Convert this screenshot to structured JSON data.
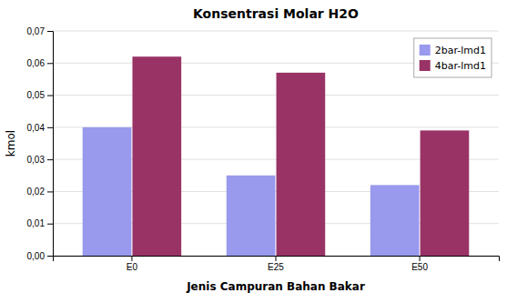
{
  "chart_data": {
    "type": "bar",
    "title": "Konsentrasi Molar H2O",
    "categories": [
      "E0",
      "E25",
      "E50"
    ],
    "series": [
      {
        "name": "2bar-lmd1",
        "color": "#9999EE",
        "values": [
          0.04,
          0.025,
          0.022
        ]
      },
      {
        "name": "4bar-lmd1",
        "color": "#993366",
        "values": [
          0.062,
          0.057,
          0.039
        ]
      }
    ],
    "xlabel": "Jenis Campuran Bahan Bakar",
    "ylabel": "kmol",
    "ylim": [
      0.0,
      0.07
    ],
    "yticks": [
      {
        "value": 0.0,
        "label": "0,00"
      },
      {
        "value": 0.01,
        "label": "0,01"
      },
      {
        "value": 0.02,
        "label": "0,02"
      },
      {
        "value": 0.03,
        "label": "0,03"
      },
      {
        "value": 0.04,
        "label": "0,04"
      },
      {
        "value": 0.05,
        "label": "0,05"
      },
      {
        "value": 0.06,
        "label": "0,06"
      },
      {
        "value": 0.07,
        "label": "0,07"
      }
    ],
    "grid": true,
    "legend": "upper right"
  }
}
